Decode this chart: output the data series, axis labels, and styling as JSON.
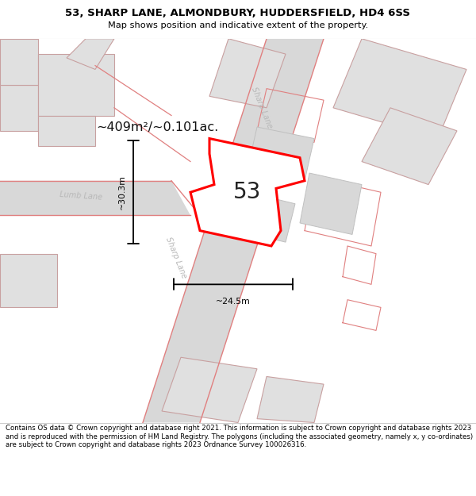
{
  "title": "53, SHARP LANE, ALMONDBURY, HUDDERSFIELD, HD4 6SS",
  "subtitle": "Map shows position and indicative extent of the property.",
  "footer": "Contains OS data © Crown copyright and database right 2021. This information is subject to Crown copyright and database rights 2023 and is reproduced with the permission of HM Land Registry. The polygons (including the associated geometry, namely x, y co-ordinates) are subject to Crown copyright and database rights 2023 Ordnance Survey 100026316.",
  "area_label": "~409m²/~0.101ac.",
  "width_label": "~24.5m",
  "height_label": "~30.3m",
  "plot_number": "53",
  "background_color": "#ffffff",
  "building_fill": "#e0e0e0",
  "building_stroke": "#c8a0a0",
  "road_fill": "#d4d4d4",
  "plot_stroke": "#ff0000",
  "plot_fill": "#ffffff",
  "dim_line_color": "#000000",
  "road_label_color": "#b8b8b8",
  "title_color": "#000000",
  "footer_color": "#000000",
  "pink_line": "#e08080",
  "sep_line": "#cccccc"
}
